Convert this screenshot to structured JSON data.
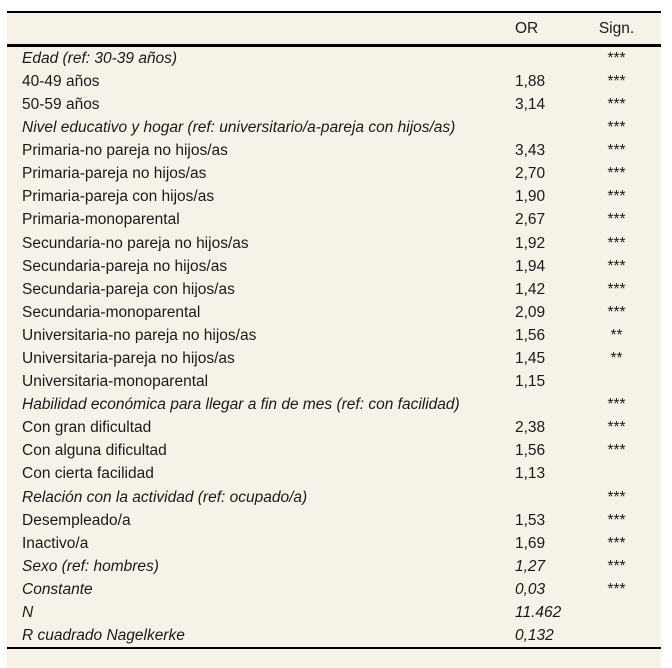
{
  "table": {
    "background_color": "#f6f2e7",
    "rule_color": "#000000",
    "text_color": "#1a1a1a",
    "header": {
      "variable_label": "",
      "or_label": "OR",
      "sign_label": "Sign."
    },
    "rows": [
      {
        "label": "Edad (ref: 30-39 años)",
        "italic": true,
        "or": "",
        "sign": "***"
      },
      {
        "label": "40-49 años",
        "italic": false,
        "or": "1,88",
        "sign": "***"
      },
      {
        "label": "50-59 años",
        "italic": false,
        "or": "3,14",
        "sign": "***"
      },
      {
        "label": "Nivel educativo y hogar (ref: universitario/a-pareja con hijos/as)",
        "italic": true,
        "or": "",
        "sign": "***"
      },
      {
        "label": "Primaria-no pareja no hijos/as",
        "italic": false,
        "or": "3,43",
        "sign": "***"
      },
      {
        "label": "Primaria-pareja no hijos/as",
        "italic": false,
        "or": "2,70",
        "sign": "***"
      },
      {
        "label": "Primaria-pareja con hijos/as",
        "italic": false,
        "or": "1,90",
        "sign": "***"
      },
      {
        "label": "Primaria-monoparental",
        "italic": false,
        "or": "2,67",
        "sign": "***"
      },
      {
        "label": "Secundaria-no pareja no hijos/as",
        "italic": false,
        "or": "1,92",
        "sign": "***"
      },
      {
        "label": "Secundaria-pareja no hijos/as",
        "italic": false,
        "or": "1,94",
        "sign": "***"
      },
      {
        "label": "Secundaria-pareja con hijos/as",
        "italic": false,
        "or": "1,42",
        "sign": "***"
      },
      {
        "label": "Secundaria-monoparental",
        "italic": false,
        "or": "2,09",
        "sign": "***"
      },
      {
        "label": "Universitaria-no pareja no hijos/as",
        "italic": false,
        "or": "1,56",
        "sign": "**"
      },
      {
        "label": "Universitaria-pareja no hijos/as",
        "italic": false,
        "or": "1,45",
        "sign": "**"
      },
      {
        "label": "Universitaria-monoparental",
        "italic": false,
        "or": "1,15",
        "sign": ""
      },
      {
        "label": "Habilidad económica para llegar a fin de mes (ref: con facilidad)",
        "italic": true,
        "or": "",
        "sign": "***"
      },
      {
        "label": "Con gran dificultad",
        "italic": false,
        "or": "2,38",
        "sign": "***"
      },
      {
        "label": "Con alguna dificultad",
        "italic": false,
        "or": "1,56",
        "sign": "***"
      },
      {
        "label": "Con cierta facilidad",
        "italic": false,
        "or": "1,13",
        "sign": ""
      },
      {
        "label": "Relación con la actividad (ref: ocupado/a)",
        "italic": true,
        "or": "",
        "sign": "***"
      },
      {
        "label": "Desempleado/a",
        "italic": false,
        "or": "1,53",
        "sign": "***"
      },
      {
        "label": "Inactivo/a",
        "italic": false,
        "or": "1,69",
        "sign": "***"
      },
      {
        "label": "Sexo (ref: hombres)",
        "italic": true,
        "or": "1,27",
        "sign": "***"
      },
      {
        "label": "Constante",
        "italic": true,
        "or": "0,03",
        "sign": "***"
      },
      {
        "label": "N",
        "italic": true,
        "or": "11.462",
        "sign": ""
      },
      {
        "label": "R cuadrado Nagelkerke",
        "italic": true,
        "or": "0,132",
        "sign": ""
      }
    ]
  }
}
